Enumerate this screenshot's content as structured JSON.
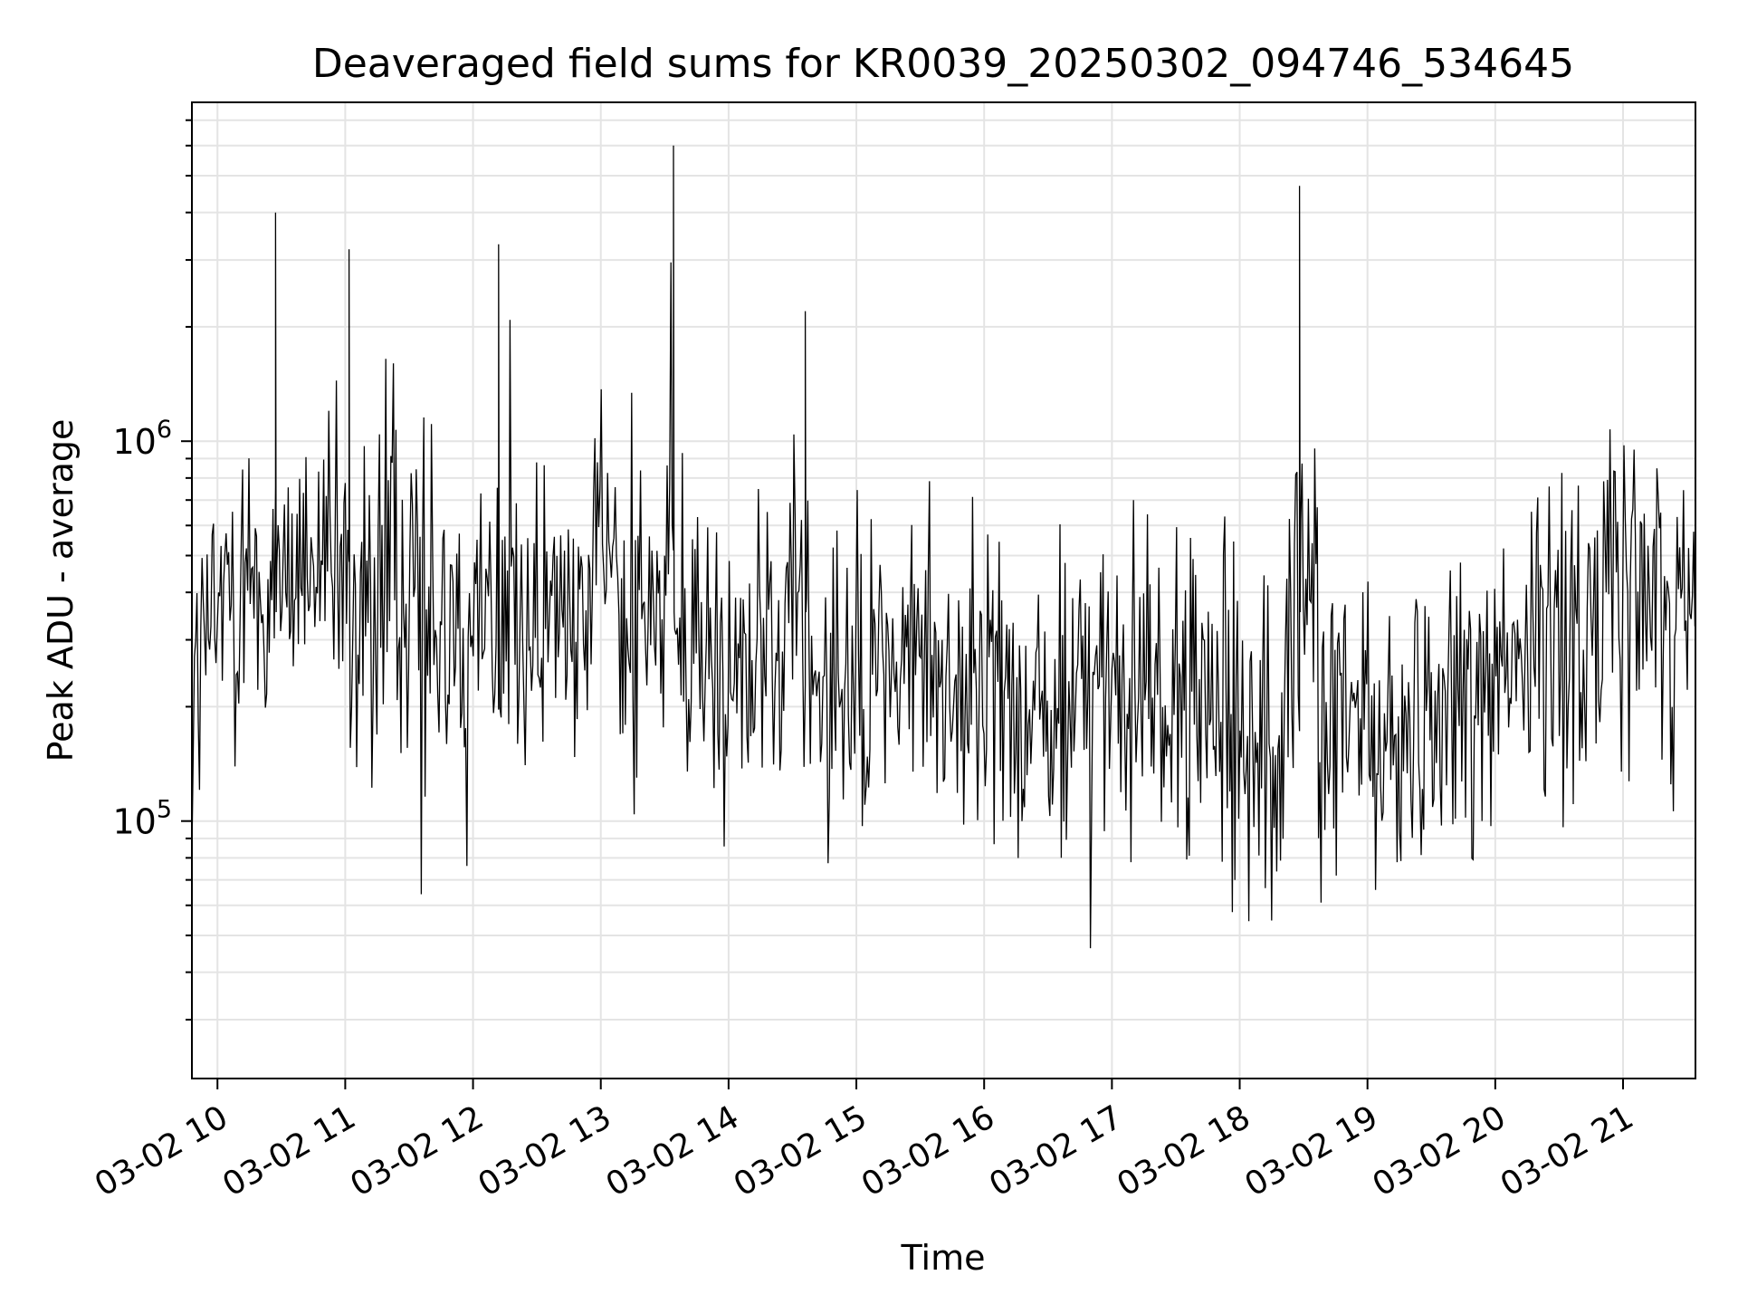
{
  "chart_data": {
    "type": "line",
    "title": "Deaveraged field sums for KR0039_20250302_094746_534645",
    "xlabel": "Time",
    "ylabel": "Peak ADU - average",
    "x_axis_type": "datetime",
    "xlim": [
      "2025-03-02T09:48",
      "2025-03-02T21:34"
    ],
    "ylim": [
      21000,
      7800000
    ],
    "yscale": "log",
    "x_ticks": [
      "03-02 10",
      "03-02 11",
      "03-02 12",
      "03-02 13",
      "03-02 14",
      "03-02 15",
      "03-02 16",
      "03-02 17",
      "03-02 18",
      "03-02 19",
      "03-02 20",
      "03-02 21"
    ],
    "y_ticks": [
      {
        "value": 100000,
        "base": "10",
        "exp": "5"
      },
      {
        "value": 1000000,
        "base": "10",
        "exp": "6"
      }
    ],
    "grid": true,
    "series": [
      {
        "color": "#000000",
        "x": [
          "2025-03-02T09:48",
          "2025-03-02T10:00",
          "2025-03-02T10:15",
          "2025-03-02T10:27",
          "2025-03-02T10:30",
          "2025-03-02T10:45",
          "2025-03-02T11:00",
          "2025-03-02T11:02",
          "2025-03-02T11:15",
          "2025-03-02T11:30",
          "2025-03-02T11:45",
          "2025-03-02T12:00",
          "2025-03-02T12:12",
          "2025-03-02T12:30",
          "2025-03-02T12:45",
          "2025-03-02T12:55",
          "2025-03-02T13:00",
          "2025-03-02T13:15",
          "2025-03-02T13:34",
          "2025-03-02T13:45",
          "2025-03-02T14:00",
          "2025-03-02T14:15",
          "2025-03-02T14:36",
          "2025-03-02T14:45",
          "2025-03-02T15:00",
          "2025-03-02T15:15",
          "2025-03-02T15:30",
          "2025-03-02T15:45",
          "2025-03-02T16:00",
          "2025-03-02T16:15",
          "2025-03-02T16:30",
          "2025-03-02T16:45",
          "2025-03-02T17:00",
          "2025-03-02T17:15",
          "2025-03-02T17:30",
          "2025-03-02T17:45",
          "2025-03-02T18:00",
          "2025-03-02T18:15",
          "2025-03-02T18:28",
          "2025-03-02T18:45",
          "2025-03-02T19:00",
          "2025-03-02T19:15",
          "2025-03-02T19:30",
          "2025-03-02T19:45",
          "2025-03-02T20:00",
          "2025-03-02T20:15",
          "2025-03-02T20:30",
          "2025-03-02T20:45",
          "2025-03-02T21:00",
          "2025-03-02T21:15",
          "2025-03-02T21:34"
        ],
        "y": [
          200000,
          380000,
          450000,
          4000000,
          500000,
          480000,
          420000,
          3200000,
          400000,
          380000,
          360000,
          330000,
          3300000,
          350000,
          340000,
          420000,
          480000,
          400000,
          6000000,
          300000,
          260000,
          250000,
          2200000,
          260000,
          240000,
          250000,
          260000,
          240000,
          230000,
          220000,
          200000,
          210000,
          210000,
          200000,
          200000,
          190000,
          180000,
          170000,
          4700000,
          170000,
          170000,
          160000,
          180000,
          220000,
          260000,
          300000,
          320000,
          360000,
          420000,
          400000,
          380000
        ]
      }
    ]
  }
}
